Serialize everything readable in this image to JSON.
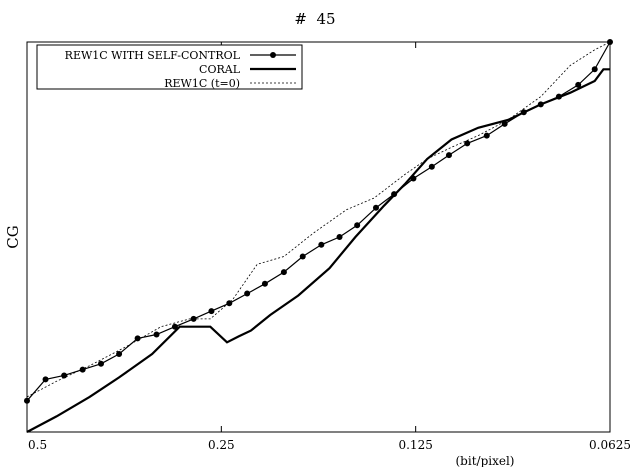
{
  "chart_data": {
    "type": "line",
    "title": "#  45",
    "xlabel": "(bit/pixel)",
    "ylabel": "CG",
    "x_scale": "log",
    "x_reversed": true,
    "xlim": [
      0.5,
      0.0625
    ],
    "ylim": [
      0,
      100
    ],
    "x_ticks": [
      0.5,
      0.25,
      0.125,
      0.0625
    ],
    "x_tick_labels": [
      "0.5",
      "0.25",
      "0.125",
      "0.0625"
    ],
    "y_ticks_shown": false,
    "grid": false,
    "legend_position": "top-left",
    "series": [
      {
        "name": "REW1C WITH SELF-CONTROL",
        "style": "line-markers",
        "color": "#000000",
        "x": [
          0.5,
          0.468,
          0.438,
          0.41,
          0.384,
          0.36,
          0.337,
          0.315,
          0.295,
          0.276,
          0.259,
          0.243,
          0.228,
          0.214,
          0.2,
          0.187,
          0.175,
          0.164,
          0.154,
          0.144,
          0.135,
          0.126,
          0.118,
          0.111,
          0.104,
          0.097,
          0.091,
          0.085,
          0.08,
          0.075,
          0.07,
          0.066,
          0.0625
        ],
        "y": [
          8.0,
          13.5,
          14.5,
          16.0,
          17.5,
          20.0,
          24.0,
          25.0,
          27.0,
          29.0,
          31.0,
          33.0,
          35.5,
          38.0,
          41.0,
          45.0,
          48.0,
          50.0,
          53.0,
          57.5,
          61.0,
          65.0,
          68.0,
          71.0,
          74.0,
          76.0,
          79.0,
          82.0,
          84.0,
          86.0,
          89.0,
          93.0,
          100.0
        ]
      },
      {
        "name": "CORAL",
        "style": "line-thick",
        "color": "#000000",
        "x": [
          0.5,
          0.45,
          0.4,
          0.36,
          0.32,
          0.29,
          0.26,
          0.245,
          0.235,
          0.225,
          0.21,
          0.19,
          0.17,
          0.155,
          0.14,
          0.13,
          0.12,
          0.11,
          0.1,
          0.09,
          0.08,
          0.072,
          0.066,
          0.064,
          0.0625
        ],
        "y": [
          0.0,
          4.0,
          9.0,
          14.0,
          20.0,
          27.0,
          27.0,
          23.0,
          24.5,
          26.0,
          30.0,
          35.0,
          42.0,
          50.0,
          58.0,
          63.5,
          70.0,
          75.0,
          78.0,
          80.0,
          84.0,
          87.0,
          90.0,
          93.0,
          93.0
        ]
      },
      {
        "name": "REW1C  (t=0)",
        "style": "dotted",
        "color": "#000000",
        "x": [
          0.5,
          0.45,
          0.4,
          0.35,
          0.31,
          0.28,
          0.26,
          0.24,
          0.22,
          0.2,
          0.18,
          0.16,
          0.145,
          0.13,
          0.12,
          0.11,
          0.1,
          0.09,
          0.08,
          0.072,
          0.066,
          0.0625
        ],
        "y": [
          9.0,
          13.0,
          17.0,
          22.0,
          27.0,
          29.0,
          29.0,
          34.0,
          43.0,
          45.0,
          51.0,
          57.0,
          60.0,
          66.0,
          70.0,
          73.0,
          76.0,
          80.0,
          86.0,
          94.0,
          98.0,
          100.0
        ]
      }
    ]
  }
}
